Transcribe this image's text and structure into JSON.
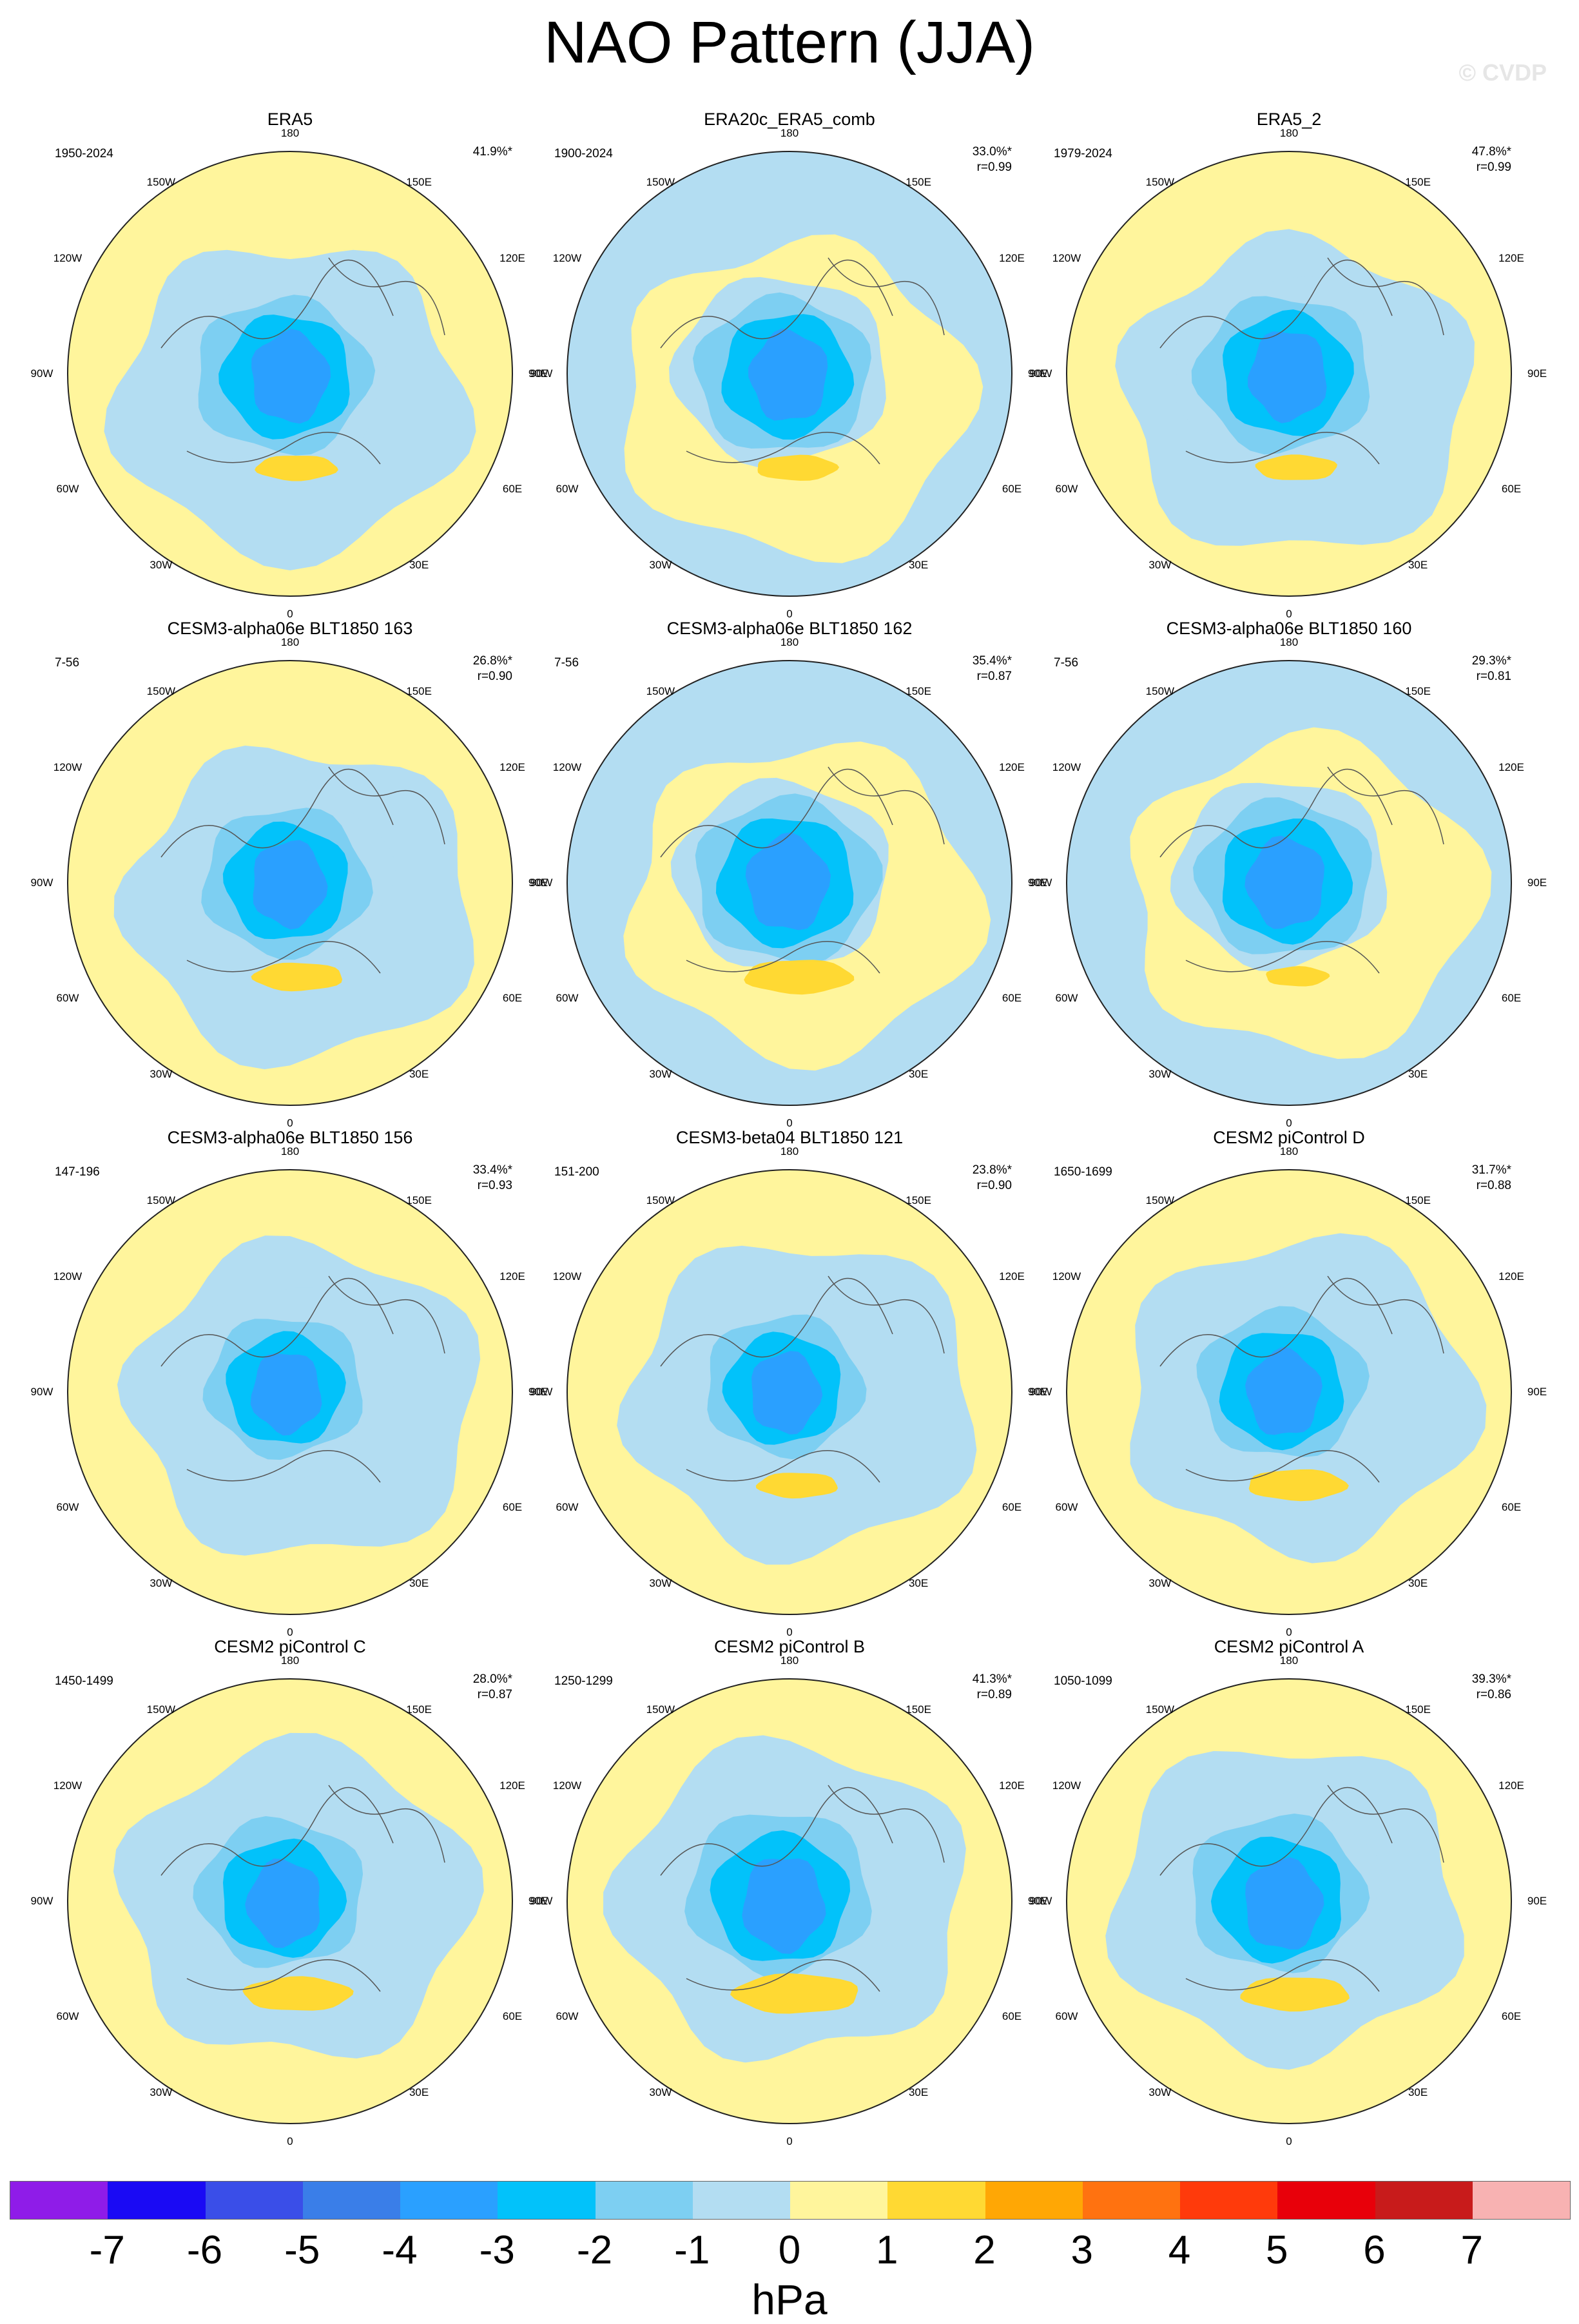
{
  "title": "NAO Pattern (JJA)",
  "watermark": "© CVDP",
  "colorbar": {
    "colors": [
      "#8f1ce8",
      "#1a0af4",
      "#3a4ee8",
      "#3a7ee8",
      "#2aa0ff",
      "#02c2fa",
      "#7dcff2",
      "#b3ddf2",
      "#fff59c",
      "#ffd933",
      "#ffa705",
      "#ff7210",
      "#ff3a0b",
      "#e8000a",
      "#c81b1b",
      "#f8b2b2"
    ],
    "labels": [
      "-7",
      "-6",
      "-5",
      "-4",
      "-3",
      "-2",
      "-1",
      "0",
      "1",
      "2",
      "3",
      "4",
      "5",
      "6",
      "7"
    ],
    "units": "hPa"
  },
  "lon_labels": {
    "top": "180",
    "bottom": "0",
    "upper_left": "150W",
    "upper_right": "150E",
    "left_high": "120W",
    "right_high": "120E",
    "left_mid": "90W",
    "right_mid": "90E",
    "left_low": "60W",
    "right_low": "60E",
    "lower_left": "30W",
    "lower_right": "30E"
  },
  "panels": [
    {
      "title": "ERA5",
      "years": "1950-2024",
      "pct": "41.9%*",
      "r": "",
      "bg": "#fff59c",
      "band": "#b3ddf2",
      "center_scale": 1.0,
      "pos_scale": 0.9
    },
    {
      "title": "ERA20c_ERA5_comb",
      "years": "1900-2024",
      "pct": "33.0%*",
      "r": "r=0.99",
      "bg": "#b3ddf2",
      "band": "#fff59c",
      "center_scale": 1.0,
      "pos_scale": 0.9
    },
    {
      "title": "ERA5_2",
      "years": "1979-2024",
      "pct": "47.8%*",
      "r": "r=0.99",
      "bg": "#fff59c",
      "band": "#b3ddf2",
      "center_scale": 1.0,
      "pos_scale": 0.9
    },
    {
      "title": "CESM3-alpha06e BLT1850 163",
      "years": "7-56",
      "pct": "26.8%*",
      "r": "r=0.90",
      "bg": "#fff59c",
      "band": "#b3ddf2",
      "center_scale": 0.95,
      "pos_scale": 1.0
    },
    {
      "title": "CESM3-alpha06e BLT1850 162",
      "years": "7-56",
      "pct": "35.4%*",
      "r": "r=0.87",
      "bg": "#b3ddf2",
      "band": "#fff59c",
      "center_scale": 1.05,
      "pos_scale": 1.2
    },
    {
      "title": "CESM3-alpha06e BLT1850 160",
      "years": "7-56",
      "pct": "29.3%*",
      "r": "r=0.81",
      "bg": "#b3ddf2",
      "band": "#fff59c",
      "center_scale": 1.0,
      "pos_scale": 0.7
    },
    {
      "title": "CESM3-alpha06e BLT1850 156",
      "years": "147-196",
      "pct": "33.4%*",
      "r": "r=0.93",
      "bg": "#fff59c",
      "band": "#b3ddf2",
      "center_scale": 0.9,
      "pos_scale": 0.0
    },
    {
      "title": "CESM3-beta04 BLT1850 121",
      "years": "151-200",
      "pct": "23.8%*",
      "r": "r=0.90",
      "bg": "#fff59c",
      "band": "#b3ddf2",
      "center_scale": 0.9,
      "pos_scale": 0.9
    },
    {
      "title": "CESM2 piControl D",
      "years": "1650-1699",
      "pct": "31.7%*",
      "r": "r=0.88",
      "bg": "#fff59c",
      "band": "#b3ddf2",
      "center_scale": 0.95,
      "pos_scale": 1.1
    },
    {
      "title": "CESM2 piControl C",
      "years": "1450-1499",
      "pct": "28.0%*",
      "r": "r=0.87",
      "bg": "#fff59c",
      "band": "#b3ddf2",
      "center_scale": 0.95,
      "pos_scale": 1.2
    },
    {
      "title": "CESM2 piControl B",
      "years": "1250-1299",
      "pct": "41.3%*",
      "r": "r=0.89",
      "bg": "#fff59c",
      "band": "#b3ddf2",
      "center_scale": 1.05,
      "pos_scale": 1.4
    },
    {
      "title": "CESM2 piControl A",
      "years": "1050-1099",
      "pct": "39.3%*",
      "r": "r=0.86",
      "bg": "#fff59c",
      "band": "#b3ddf2",
      "center_scale": 1.0,
      "pos_scale": 1.2
    }
  ]
}
